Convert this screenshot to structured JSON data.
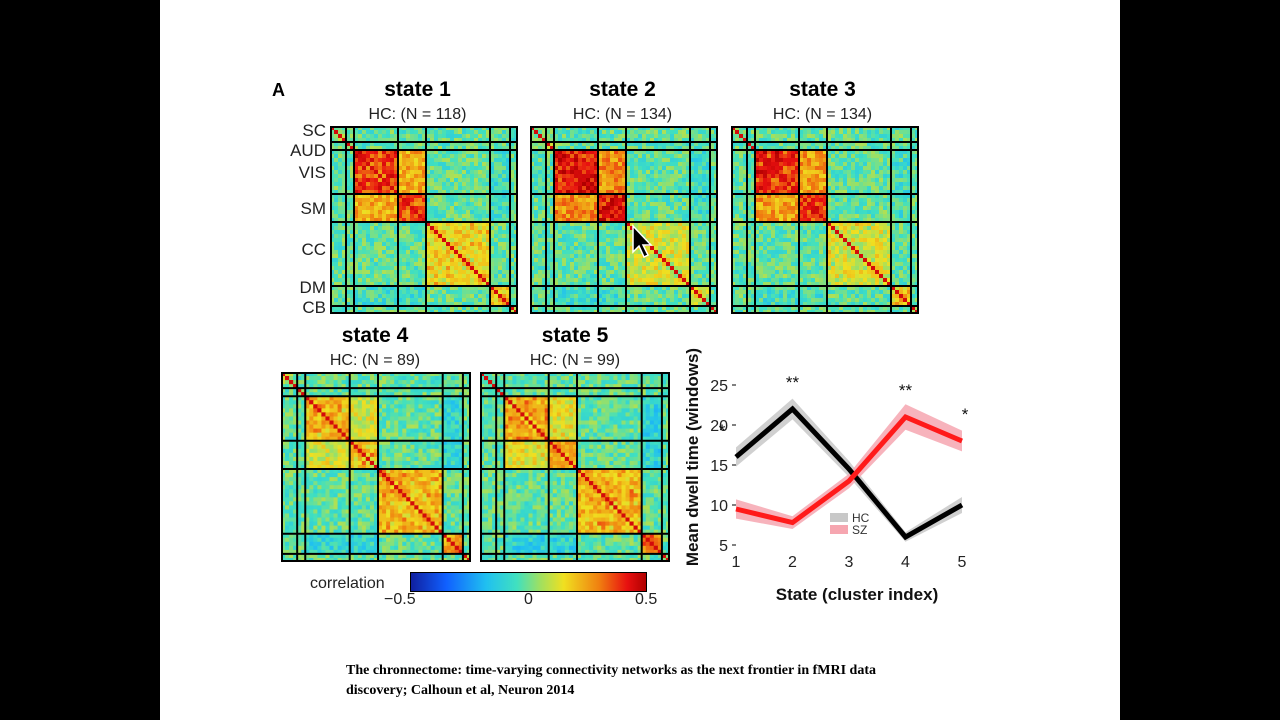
{
  "panel_letter": "A",
  "states": [
    {
      "title": "state 1",
      "subtitle": "HC: (N = 118)",
      "seed": 11,
      "mix": [
        0.55,
        0.15,
        0.15,
        0.15
      ]
    },
    {
      "title": "state 2",
      "subtitle": "HC: (N = 134)",
      "seed": 23,
      "mix": [
        0.65,
        0.1,
        0.1,
        0.15
      ]
    },
    {
      "title": "state 3",
      "subtitle": "HC: (N = 134)",
      "seed": 37,
      "mix": [
        0.6,
        0.1,
        0.15,
        0.15
      ]
    },
    {
      "title": "state 4",
      "subtitle": "HC: (N = 89)",
      "seed": 41,
      "mix": [
        0.3,
        0.2,
        0.25,
        0.25
      ]
    },
    {
      "title": "state 5",
      "subtitle": "HC: (N = 99)",
      "seed": 53,
      "mix": [
        0.35,
        0.2,
        0.25,
        0.3
      ]
    }
  ],
  "networks": [
    "SC",
    "AUD",
    "VIS",
    "SM",
    "CC",
    "DM",
    "CB"
  ],
  "colorbar": {
    "label": "correlation",
    "min_label": "−0.5",
    "mid_label": "0",
    "max_label": "0.5",
    "min": -0.5,
    "max": 0.5
  },
  "chart_data": {
    "type": "line",
    "xlabel": "State (cluster index)",
    "ylabel": "Mean dwell time (windows)",
    "x": [
      1,
      2,
      3,
      4,
      5
    ],
    "xlim": [
      1,
      5
    ],
    "ylim": [
      5,
      25
    ],
    "yticks": [
      5,
      10,
      15,
      20,
      25
    ],
    "series": [
      {
        "name": "HC",
        "values": [
          16,
          22,
          14.5,
          6,
          10
        ],
        "color": "#000000",
        "band_color": "#c8c8c8",
        "band": [
          1.2,
          1.3,
          1.0,
          0.6,
          1.0
        ]
      },
      {
        "name": "SZ",
        "values": [
          9.5,
          7.8,
          13,
          21,
          18
        ],
        "color": "#ff1a1a",
        "band_color": "#f6a6b0",
        "band": [
          1.2,
          0.8,
          0.9,
          1.6,
          1.3
        ]
      }
    ],
    "significance": [
      {
        "x": 1,
        "label": "*"
      },
      {
        "x": 2,
        "label": "**"
      },
      {
        "x": 4,
        "label": "**"
      },
      {
        "x": 5,
        "label": "*"
      }
    ],
    "legend": {
      "position": "bottom-right"
    }
  },
  "caption": {
    "line1": "The chronnectome: time-varying connectivity networks as the next frontier in fMRI data",
    "line2": "discovery;  Calhoun et al, Neuron 2014"
  }
}
